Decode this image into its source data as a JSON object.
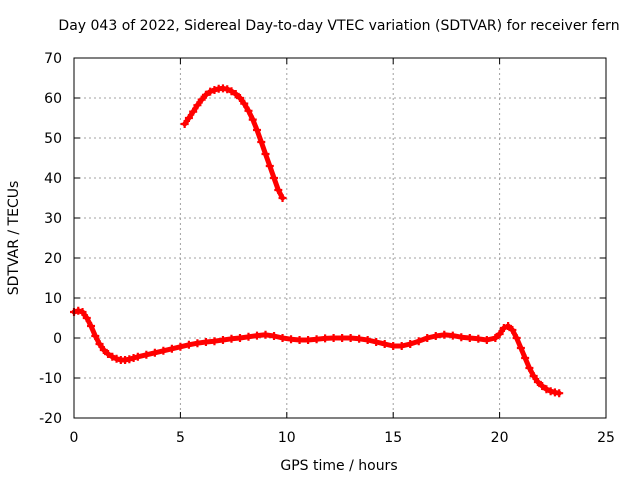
{
  "chart_data": {
    "type": "scatter",
    "title": "Day 043 of 2022, Sidereal Day-to-day VTEC variation (SDTVAR) for receiver fern",
    "xlabel": "GPS time / hours",
    "ylabel": "SDTVAR / TECUs",
    "xlim": [
      0,
      25
    ],
    "ylim": [
      -20,
      70
    ],
    "xticks": [
      0,
      5,
      10,
      15,
      20,
      25
    ],
    "yticks": [
      -20,
      -10,
      0,
      10,
      20,
      30,
      40,
      50,
      60,
      70
    ],
    "grid": true,
    "marker": "plus",
    "series_color": "#ff0000",
    "series": [
      {
        "name": "segment-1",
        "points": [
          [
            0.0,
            6.5
          ],
          [
            0.2,
            6.8
          ],
          [
            0.4,
            6.5
          ],
          [
            0.6,
            5.0
          ],
          [
            0.8,
            3.0
          ],
          [
            1.0,
            0.5
          ],
          [
            1.2,
            -1.5
          ],
          [
            1.4,
            -3.0
          ],
          [
            1.6,
            -4.0
          ],
          [
            1.8,
            -4.7
          ],
          [
            2.0,
            -5.2
          ],
          [
            2.2,
            -5.5
          ],
          [
            2.4,
            -5.5
          ],
          [
            2.6,
            -5.3
          ],
          [
            2.8,
            -5.0
          ],
          [
            3.0,
            -4.7
          ],
          [
            3.4,
            -4.2
          ],
          [
            3.8,
            -3.7
          ],
          [
            4.2,
            -3.2
          ],
          [
            4.6,
            -2.7
          ],
          [
            5.0,
            -2.2
          ],
          [
            5.4,
            -1.7
          ],
          [
            5.8,
            -1.3
          ],
          [
            6.2,
            -1.0
          ],
          [
            6.6,
            -0.8
          ],
          [
            7.0,
            -0.5
          ],
          [
            7.4,
            -0.2
          ],
          [
            7.8,
            0.0
          ],
          [
            8.2,
            0.3
          ],
          [
            8.6,
            0.6
          ],
          [
            9.0,
            0.8
          ],
          [
            9.4,
            0.5
          ],
          [
            9.8,
            0.0
          ],
          [
            10.2,
            -0.3
          ],
          [
            10.6,
            -0.5
          ],
          [
            11.0,
            -0.5
          ],
          [
            11.4,
            -0.3
          ],
          [
            11.8,
            -0.1
          ],
          [
            12.2,
            0.0
          ],
          [
            12.6,
            0.0
          ],
          [
            13.0,
            0.0
          ],
          [
            13.4,
            -0.2
          ],
          [
            13.8,
            -0.5
          ],
          [
            14.2,
            -1.0
          ],
          [
            14.6,
            -1.5
          ],
          [
            15.0,
            -2.0
          ],
          [
            15.4,
            -2.0
          ],
          [
            15.8,
            -1.5
          ],
          [
            16.2,
            -0.8
          ],
          [
            16.6,
            0.0
          ],
          [
            17.0,
            0.5
          ],
          [
            17.4,
            0.8
          ],
          [
            17.8,
            0.6
          ],
          [
            18.2,
            0.2
          ],
          [
            18.6,
            0.0
          ],
          [
            19.0,
            -0.2
          ],
          [
            19.4,
            -0.5
          ],
          [
            19.8,
            0.0
          ],
          [
            20.0,
            1.0
          ],
          [
            20.2,
            2.5
          ],
          [
            20.4,
            3.0
          ],
          [
            20.6,
            2.0
          ],
          [
            20.8,
            0.0
          ],
          [
            21.0,
            -2.5
          ],
          [
            21.2,
            -5.0
          ],
          [
            21.4,
            -7.5
          ],
          [
            21.6,
            -9.5
          ],
          [
            21.8,
            -11.0
          ],
          [
            22.0,
            -12.0
          ],
          [
            22.2,
            -12.8
          ],
          [
            22.4,
            -13.3
          ],
          [
            22.6,
            -13.6
          ],
          [
            22.8,
            -13.8
          ]
        ]
      },
      {
        "name": "segment-2",
        "points": [
          [
            5.2,
            53.5
          ],
          [
            5.4,
            55.0
          ],
          [
            5.6,
            56.6
          ],
          [
            5.8,
            58.2
          ],
          [
            6.0,
            59.6
          ],
          [
            6.2,
            60.8
          ],
          [
            6.4,
            61.6
          ],
          [
            6.6,
            62.0
          ],
          [
            6.8,
            62.3
          ],
          [
            7.0,
            62.4
          ],
          [
            7.2,
            62.2
          ],
          [
            7.4,
            61.7
          ],
          [
            7.6,
            61.0
          ],
          [
            7.8,
            60.0
          ],
          [
            8.0,
            58.6
          ],
          [
            8.2,
            56.8
          ],
          [
            8.4,
            54.6
          ],
          [
            8.6,
            52.0
          ],
          [
            8.8,
            49.0
          ],
          [
            9.0,
            46.0
          ],
          [
            9.2,
            43.0
          ],
          [
            9.4,
            40.0
          ],
          [
            9.6,
            37.0
          ],
          [
            9.8,
            35.0
          ]
        ]
      }
    ]
  }
}
